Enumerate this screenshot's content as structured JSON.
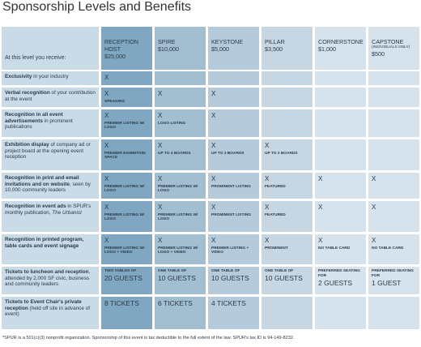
{
  "title": "Sponsorship Levels and Benefits",
  "table": {
    "corner": "At this level you receive:",
    "columns": [
      {
        "name": "RECEPTION HOST",
        "price": "$25,000"
      },
      {
        "name": "SPIRE",
        "price": "$10,000"
      },
      {
        "name": "KEYSTONE",
        "price": "$5,000"
      },
      {
        "name": "PILLAR",
        "price": "$3,500"
      },
      {
        "name": "CORNERSTONE",
        "price": "$1,000"
      },
      {
        "name": "CAPSTONE",
        "note": "(INDIVIDUALS ONLY)",
        "price": "$500"
      }
    ],
    "rows": [
      {
        "bold": "Exclusivity",
        "text": " in your industry",
        "cells": [
          {
            "mark": "X"
          },
          null,
          null,
          null,
          null,
          null
        ]
      },
      {
        "bold": "Verbal recognition",
        "text": " of your contribution at the event",
        "cells": [
          {
            "mark": "X",
            "note": "SPEAKING"
          },
          {
            "mark": "X"
          },
          {
            "mark": "X"
          },
          null,
          null,
          null
        ]
      },
      {
        "bold": "Recognition in all event advertisements",
        "text": " in prominent publications",
        "cells": [
          {
            "mark": "X",
            "note": "PREMIER LISTING W/ LOGO"
          },
          {
            "mark": "X",
            "note": "LOGO LISTING"
          },
          {
            "mark": "X"
          },
          null,
          null,
          null
        ]
      },
      {
        "bold": "Exhibition display",
        "text": " of company ad or project board at the opening event reception",
        "cells": [
          {
            "mark": "X",
            "note": "PREMIER EXHIBITION SPACE"
          },
          {
            "mark": "X",
            "note": "UP TO 4 BOARDS"
          },
          {
            "mark": "X",
            "note": "UP TO 3 BOARDS"
          },
          {
            "mark": "X",
            "note": "UP TO 2 BOARDS"
          },
          null,
          null
        ]
      },
      {
        "bold": "Recognition in print and email invitations and on website",
        "text": ", seen by 10,000 community leaders",
        "cells": [
          {
            "mark": "X",
            "note": "PREMIER LISTING W/ LOGO"
          },
          {
            "mark": "X",
            "note": "PREMIER LISTING W/ LOGO"
          },
          {
            "mark": "X",
            "note": "PROMINENT LISTING"
          },
          {
            "mark": "X",
            "note": "FEATURED"
          },
          {
            "mark": "X"
          },
          {
            "mark": "X"
          }
        ]
      },
      {
        "bold": "Recognition in event ads",
        "text": " in SPUR's monthly publication, ",
        "italic": "The Urbanist",
        "cells": [
          {
            "mark": "X",
            "note": "PREMIER LISTING W/ LOGO"
          },
          {
            "mark": "X",
            "note": "PREMIER LISTING W/ LOGO"
          },
          {
            "mark": "X",
            "note": "PROMINENT LISTING"
          },
          {
            "mark": "X",
            "note": "FEATURED"
          },
          {
            "mark": "X"
          },
          {
            "mark": "X"
          }
        ]
      },
      {
        "bold": "Recognition in printed program, table cards and event signage",
        "cells": [
          {
            "mark": "X",
            "note": "PREMIER LISTING W/ LOGO + VIDEO"
          },
          {
            "mark": "X",
            "note": "PREMIER LISTING W/ LOGO + VIDEO"
          },
          {
            "mark": "X",
            "note": "PREMIER LISTING + VIDEO"
          },
          {
            "mark": "X",
            "note": "PROMINENT"
          },
          {
            "mark": "X",
            "note": "NO TABLE CARD"
          },
          {
            "mark": "X",
            "note": "NO TABLE CARD"
          }
        ]
      },
      {
        "bold": "Tickets to luncheon and reception",
        "text": ", attended by 2,000 SF civic, business and community leaders",
        "cells": [
          {
            "small": "TWO TABLES OF",
            "big": "20 GUESTS"
          },
          {
            "small": "ONE TABLE OF",
            "big": "10 GUESTS"
          },
          {
            "small": "ONE TABLE OF",
            "big": "10 GUESTS"
          },
          {
            "small": "ONE TABLE OF",
            "big": "10 GUESTS"
          },
          {
            "small": "PREFERRED SEATING FOR",
            "big": "2 GUESTS"
          },
          {
            "small": "PREFERRED SEATING FOR",
            "big": "1 GUEST"
          }
        ]
      },
      {
        "bold": "Tickets to Event Chair's private reception",
        "text": " (held off site in advance of event)",
        "cells": [
          {
            "big": "8 TICKETS"
          },
          {
            "big": "6 TICKETS"
          },
          {
            "big": "4 TICKETS"
          },
          null,
          null,
          null
        ]
      }
    ]
  },
  "footnote": "*SPUR is a 501(c)(3) nonprofit organization. Sponsorship of this event is tax deductible to the full extent of the law. SPUR's tax ID is 94-149-8232."
}
